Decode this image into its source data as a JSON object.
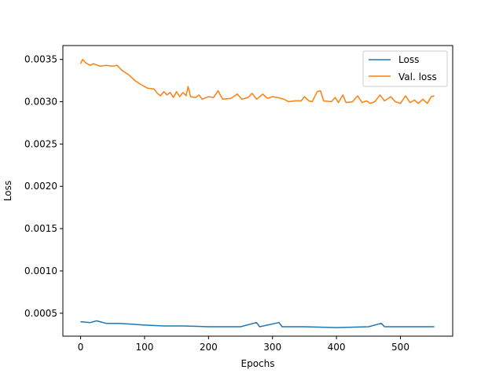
{
  "chart_data": {
    "type": "line",
    "title": "",
    "xlabel": "Epochs",
    "ylabel": "Loss",
    "xlim": [
      -27.7,
      581.7
    ],
    "ylim": [
      0.000229,
      0.003664
    ],
    "xticks": [
      0,
      100,
      200,
      300,
      400,
      500
    ],
    "yticks": [
      0.0005,
      0.001,
      0.0015,
      0.002,
      0.0025,
      0.003,
      0.0035
    ],
    "ytick_labels": [
      "0.0005",
      "0.0010",
      "0.0015",
      "0.0020",
      "0.0025",
      "0.0030",
      "0.0035"
    ],
    "grid": false,
    "legend": "top-right",
    "series": [
      {
        "name": "Loss",
        "color": "#1f77b4",
        "points": [
          [
            0,
            0.0004
          ],
          [
            15,
            0.00039
          ],
          [
            25,
            0.00041
          ],
          [
            40,
            0.00038
          ],
          [
            60,
            0.00038
          ],
          [
            80,
            0.00037
          ],
          [
            100,
            0.00036
          ],
          [
            130,
            0.00035
          ],
          [
            160,
            0.00035
          ],
          [
            200,
            0.00034
          ],
          [
            250,
            0.00034
          ],
          [
            275,
            0.00039
          ],
          [
            280,
            0.00034
          ],
          [
            310,
            0.00039
          ],
          [
            315,
            0.00034
          ],
          [
            350,
            0.00034
          ],
          [
            400,
            0.00033
          ],
          [
            450,
            0.00034
          ],
          [
            470,
            0.00038
          ],
          [
            475,
            0.00034
          ],
          [
            510,
            0.00034
          ],
          [
            553,
            0.00034
          ]
        ]
      },
      {
        "name": "Val. loss",
        "color": "#ff7f0e",
        "points": [
          [
            0,
            0.00345
          ],
          [
            3,
            0.0035
          ],
          [
            8,
            0.00346
          ],
          [
            15,
            0.00343
          ],
          [
            20,
            0.00345
          ],
          [
            30,
            0.00342
          ],
          [
            40,
            0.00343
          ],
          [
            50,
            0.00342
          ],
          [
            57,
            0.00343
          ],
          [
            65,
            0.00337
          ],
          [
            75,
            0.00332
          ],
          [
            85,
            0.00325
          ],
          [
            95,
            0.0032
          ],
          [
            105,
            0.00316
          ],
          [
            115,
            0.00315
          ],
          [
            120,
            0.0031
          ],
          [
            125,
            0.00307
          ],
          [
            130,
            0.00312
          ],
          [
            135,
            0.00308
          ],
          [
            140,
            0.00311
          ],
          [
            145,
            0.00305
          ],
          [
            150,
            0.00312
          ],
          [
            155,
            0.00306
          ],
          [
            160,
            0.00311
          ],
          [
            165,
            0.00307
          ],
          [
            168,
            0.00318
          ],
          [
            172,
            0.00306
          ],
          [
            180,
            0.00305
          ],
          [
            185,
            0.00308
          ],
          [
            190,
            0.00303
          ],
          [
            200,
            0.00306
          ],
          [
            208,
            0.00305
          ],
          [
            215,
            0.00313
          ],
          [
            222,
            0.00303
          ],
          [
            235,
            0.00304
          ],
          [
            245,
            0.00309
          ],
          [
            252,
            0.00303
          ],
          [
            262,
            0.00305
          ],
          [
            268,
            0.0031
          ],
          [
            275,
            0.00303
          ],
          [
            285,
            0.00309
          ],
          [
            292,
            0.00304
          ],
          [
            300,
            0.00306
          ],
          [
            308,
            0.00305
          ],
          [
            318,
            0.00303
          ],
          [
            325,
            0.003
          ],
          [
            335,
            0.00301
          ],
          [
            345,
            0.00301
          ],
          [
            350,
            0.00306
          ],
          [
            357,
            0.00301
          ],
          [
            362,
            0.003
          ],
          [
            370,
            0.00312
          ],
          [
            375,
            0.00313
          ],
          [
            380,
            0.00301
          ],
          [
            392,
            0.003
          ],
          [
            398,
            0.00305
          ],
          [
            403,
            0.00299
          ],
          [
            410,
            0.00308
          ],
          [
            415,
            0.00299
          ],
          [
            425,
            0.003
          ],
          [
            433,
            0.00307
          ],
          [
            440,
            0.00299
          ],
          [
            447,
            0.00301
          ],
          [
            453,
            0.00298
          ],
          [
            460,
            0.003
          ],
          [
            468,
            0.00308
          ],
          [
            475,
            0.00301
          ],
          [
            485,
            0.00306
          ],
          [
            492,
            0.003
          ],
          [
            500,
            0.00298
          ],
          [
            508,
            0.00307
          ],
          [
            515,
            0.00299
          ],
          [
            522,
            0.00302
          ],
          [
            528,
            0.00298
          ],
          [
            535,
            0.00303
          ],
          [
            542,
            0.00298
          ],
          [
            548,
            0.00306
          ],
          [
            553,
            0.00307
          ]
        ]
      }
    ]
  }
}
